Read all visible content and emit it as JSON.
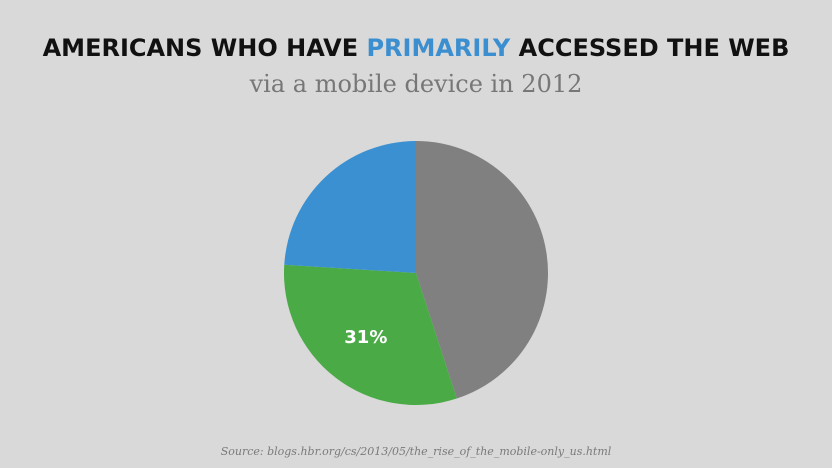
{
  "title": {
    "part1": "AMERICANS WHO HAVE ",
    "highlight": "PRIMARILY",
    "part2": " ACCESSED THE WEB"
  },
  "subtitle": "via a mobile device in 2012",
  "source": "Source: blogs.hbr.org/cs/2013/05/the_rise_of_the_mobile-only_us.html",
  "colors": {
    "background": "#d9d9d9",
    "highlight": "#3b8fd0"
  },
  "chart_data": {
    "type": "pie",
    "title": "AMERICANS WHO HAVE PRIMARILY ACCESSED THE WEB",
    "subtitle": "via a mobile device in 2012",
    "slices": [
      {
        "value": 45,
        "color": "#808080",
        "label": ""
      },
      {
        "value": 31,
        "color": "#4aaa46",
        "label": "31%"
      },
      {
        "value": 24,
        "color": "#3b90d2",
        "label": ""
      }
    ],
    "start_angle_deg": 0,
    "direction": "clockwise",
    "legend": "none"
  }
}
